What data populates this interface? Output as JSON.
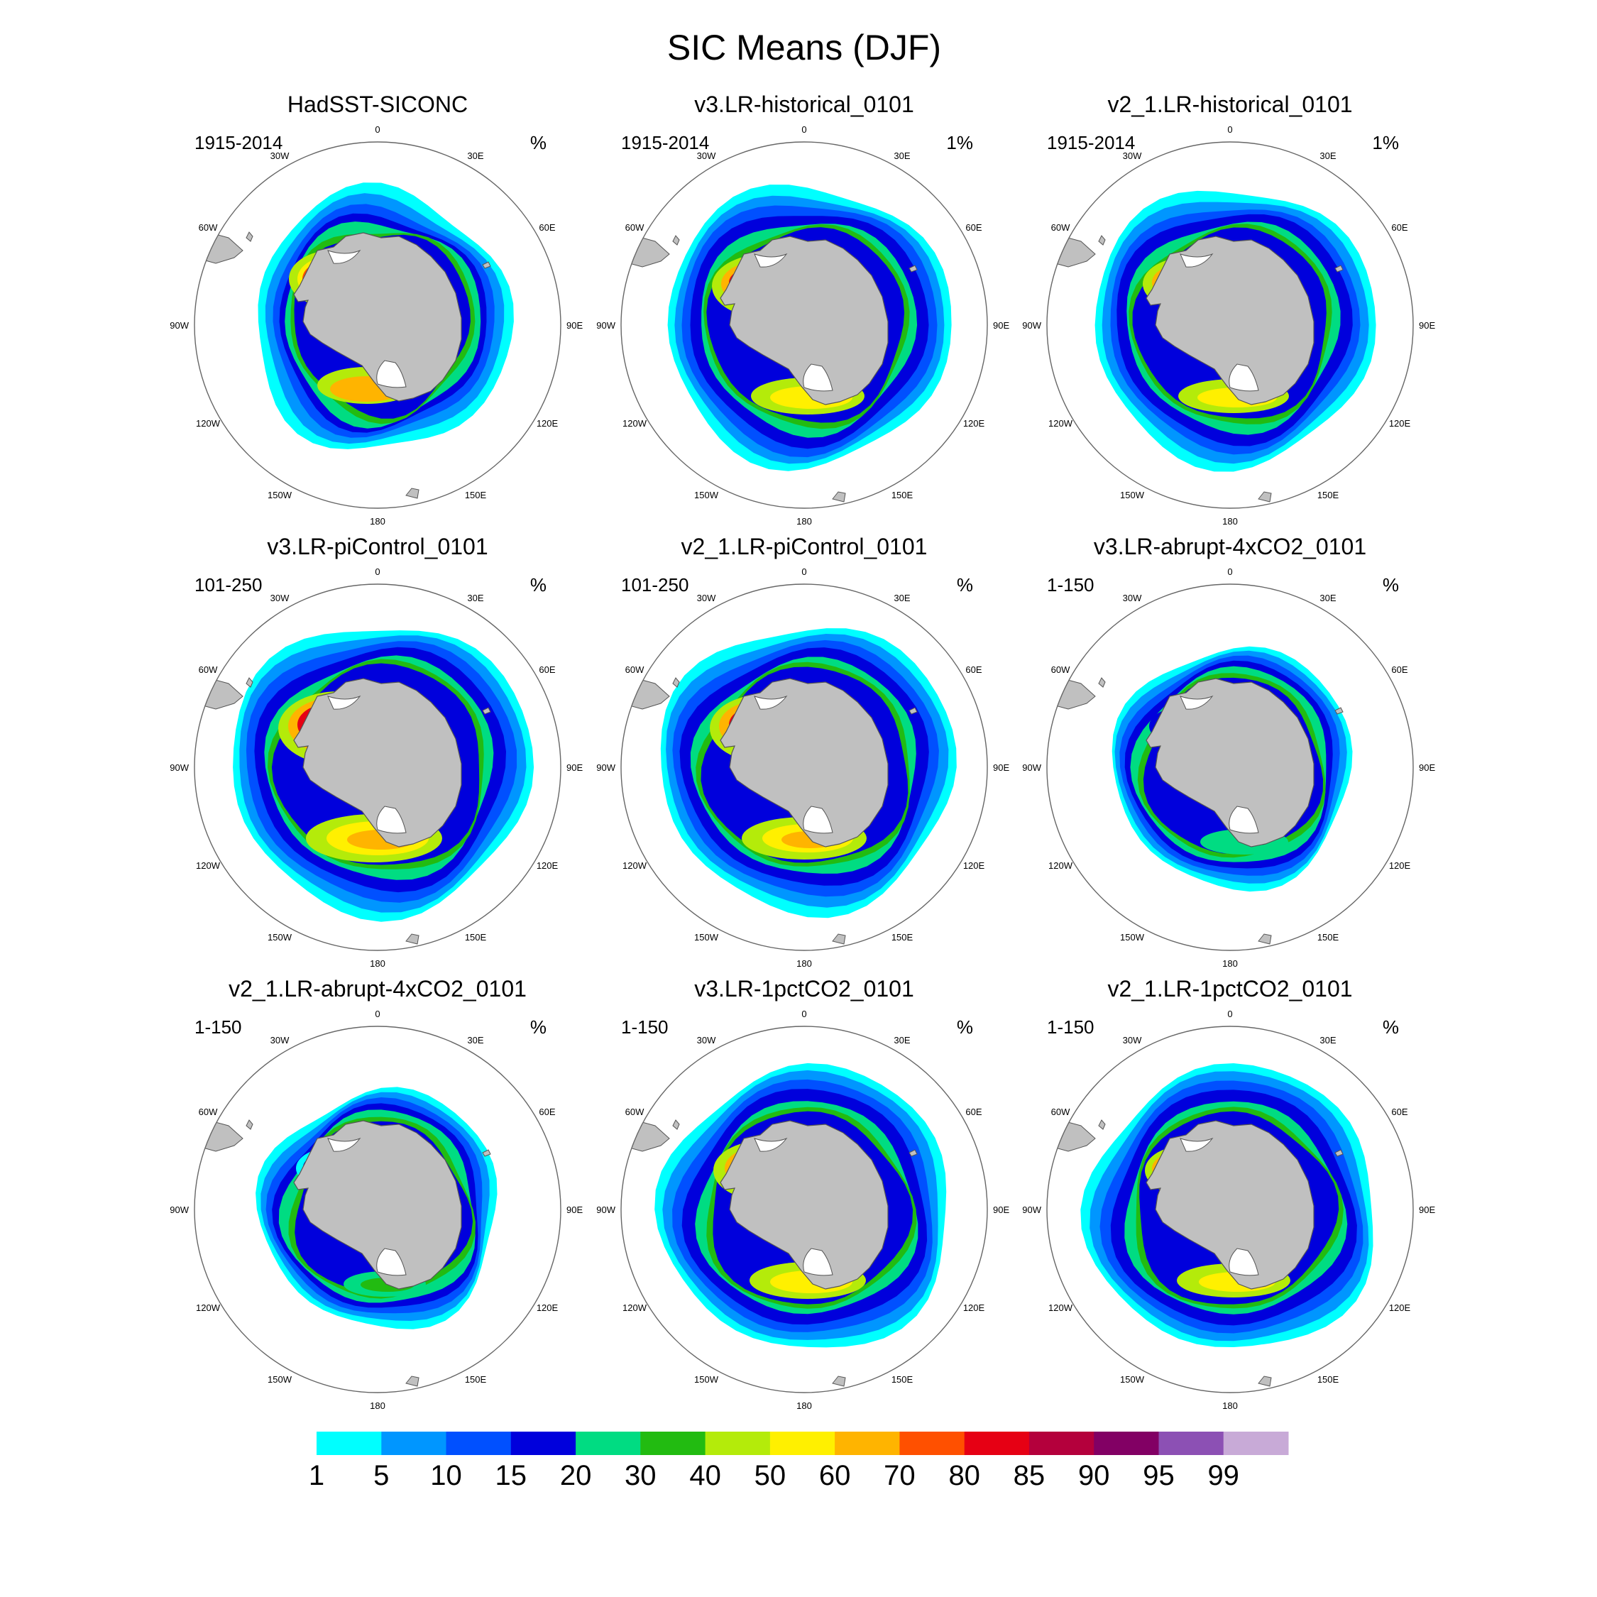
{
  "title": "SIC Means (DJF)",
  "panels": [
    {
      "title": "HadSST-SICONC",
      "period": "1915-2014",
      "units": "%",
      "ice": "obs"
    },
    {
      "title": "v3.LR-historical_0101",
      "period": "1915-2014",
      "units": "1%",
      "ice": "hist"
    },
    {
      "title": "v2_1.LR-historical_0101",
      "period": "1915-2014",
      "units": "1%",
      "ice": "hist2"
    },
    {
      "title": "v3.LR-piControl_0101",
      "period": "101-250",
      "units": "%",
      "ice": "pic"
    },
    {
      "title": "v2_1.LR-piControl_0101",
      "period": "101-250",
      "units": "%",
      "ice": "pic2"
    },
    {
      "title": "v3.LR-abrupt-4xCO2_0101",
      "period": "1-150",
      "units": "%",
      "ice": "abrupt"
    },
    {
      "title": "v2_1.LR-abrupt-4xCO2_0101",
      "period": "1-150",
      "units": "%",
      "ice": "abrupt2"
    },
    {
      "title": "v3.LR-1pctCO2_0101",
      "period": "1-150",
      "units": "%",
      "ice": "pct"
    },
    {
      "title": "v2_1.LR-1pctCO2_0101",
      "period": "1-150",
      "units": "%",
      "ice": "pct2"
    }
  ],
  "longitude_labels": [
    "0",
    "30E",
    "60E",
    "90E",
    "120E",
    "150E",
    "180",
    "150W",
    "120W",
    "90W",
    "60W",
    "30W"
  ],
  "colorbar": {
    "labels": [
      "1",
      "5",
      "10",
      "15",
      "20",
      "30",
      "40",
      "50",
      "60",
      "70",
      "80",
      "85",
      "90",
      "95",
      "99"
    ],
    "colors": [
      "#00ffff",
      "#0096ff",
      "#0050ff",
      "#0000dc",
      "#00dc82",
      "#22bb11",
      "#b4eb0a",
      "#fff000",
      "#ffb400",
      "#ff5000",
      "#e60014",
      "#b4003c",
      "#820064",
      "#8c50b4",
      "#c8aad7"
    ]
  },
  "colors": {
    "land": "#c0c0c0",
    "coast": "#555555",
    "ring": "#666666"
  }
}
